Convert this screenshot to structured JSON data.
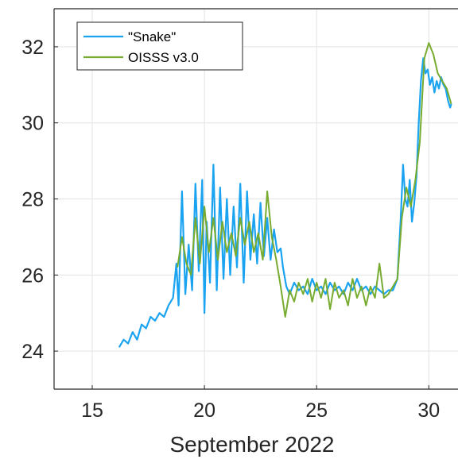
{
  "chart_data": {
    "type": "line",
    "title": "",
    "xlabel": "September 2022",
    "ylabel": "",
    "xlim": [
      13.3,
      31.3
    ],
    "ylim": [
      23.0,
      33.0
    ],
    "xticks": [
      15,
      20,
      25,
      30
    ],
    "xtick_labels": [
      "15",
      "20",
      "25",
      "30"
    ],
    "yticks": [
      24,
      26,
      28,
      30,
      32
    ],
    "ytick_labels": [
      "24",
      "26",
      "28",
      "30",
      "32"
    ],
    "grid": true,
    "legend_position": "top-left",
    "series": [
      {
        "name": "\"Snake\"",
        "color": "#1aa3f0",
        "x": [
          16.2,
          16.4,
          16.6,
          16.8,
          17.0,
          17.2,
          17.4,
          17.6,
          17.8,
          18.0,
          18.2,
          18.4,
          18.6,
          18.75,
          18.85,
          19.0,
          19.15,
          19.3,
          19.45,
          19.6,
          19.75,
          19.9,
          20.0,
          20.1,
          20.25,
          20.4,
          20.55,
          20.7,
          20.85,
          21.0,
          21.15,
          21.3,
          21.45,
          21.6,
          21.75,
          21.9,
          22.05,
          22.2,
          22.35,
          22.5,
          22.65,
          22.8,
          22.95,
          23.1,
          23.25,
          23.4,
          23.5,
          23.65,
          23.8,
          24.0,
          24.2,
          24.4,
          24.6,
          24.8,
          25.0,
          25.2,
          25.4,
          25.6,
          25.8,
          26.0,
          26.2,
          26.4,
          26.6,
          26.8,
          27.0,
          27.2,
          27.4,
          27.6,
          27.8,
          28.0,
          28.2,
          28.4,
          28.6,
          28.75,
          28.85,
          28.95,
          29.05,
          29.15,
          29.25,
          29.35,
          29.45,
          29.55,
          29.65,
          29.75,
          29.85,
          29.95,
          30.05,
          30.15,
          30.25,
          30.35,
          30.45,
          30.55,
          30.65,
          30.75,
          30.85,
          30.95,
          31.0
        ],
        "y": [
          24.1,
          24.3,
          24.2,
          24.5,
          24.3,
          24.7,
          24.6,
          24.9,
          24.8,
          25.0,
          24.9,
          25.2,
          25.4,
          26.3,
          25.2,
          28.2,
          25.5,
          26.8,
          25.6,
          28.4,
          26.1,
          28.5,
          25.0,
          27.4,
          25.8,
          28.9,
          25.6,
          28.3,
          25.9,
          28.0,
          26.0,
          27.8,
          26.2,
          28.4,
          25.8,
          28.2,
          26.4,
          27.6,
          26.3,
          27.9,
          26.5,
          27.5,
          26.4,
          27.2,
          26.6,
          26.7,
          26.2,
          25.7,
          25.5,
          25.8,
          25.6,
          25.7,
          25.5,
          25.9,
          25.6,
          25.7,
          25.5,
          25.8,
          25.6,
          25.7,
          25.5,
          25.8,
          25.6,
          25.9,
          25.6,
          25.7,
          25.5,
          25.7,
          25.6,
          25.5,
          25.6,
          25.6,
          25.9,
          27.5,
          28.9,
          28.0,
          27.8,
          28.5,
          27.4,
          27.9,
          28.6,
          30.0,
          31.1,
          31.7,
          31.3,
          31.4,
          31.0,
          31.2,
          30.8,
          31.1,
          30.9,
          31.2,
          31.0,
          30.9,
          30.6,
          30.4,
          30.5
        ]
      },
      {
        "name": "OISSS v3.0",
        "color": "#77ac30",
        "x": [
          18.8,
          19.0,
          19.2,
          19.4,
          19.6,
          19.8,
          20.0,
          20.2,
          20.4,
          20.6,
          20.8,
          21.0,
          21.2,
          21.4,
          21.6,
          21.8,
          22.0,
          22.2,
          22.4,
          22.6,
          22.8,
          23.0,
          23.2,
          23.4,
          23.6,
          23.8,
          24.0,
          24.2,
          24.4,
          24.6,
          24.8,
          25.0,
          25.2,
          25.4,
          25.6,
          25.8,
          26.0,
          26.2,
          26.4,
          26.6,
          26.8,
          27.0,
          27.2,
          27.4,
          27.6,
          27.8,
          28.0,
          28.2,
          28.4,
          28.6,
          28.8,
          29.0,
          29.2,
          29.4,
          29.6,
          29.8,
          30.0,
          30.2,
          30.4,
          30.6,
          30.8,
          31.0
        ],
        "y": [
          26.2,
          27.0,
          26.3,
          26.0,
          27.5,
          26.3,
          27.8,
          26.6,
          27.5,
          26.4,
          27.4,
          26.6,
          27.1,
          26.5,
          27.5,
          26.8,
          27.4,
          26.6,
          27.1,
          26.4,
          28.2,
          27.0,
          26.4,
          25.7,
          24.9,
          25.6,
          25.3,
          25.8,
          25.5,
          25.9,
          25.3,
          25.8,
          25.4,
          25.9,
          25.1,
          25.8,
          25.4,
          25.6,
          25.2,
          25.9,
          25.4,
          25.7,
          25.2,
          25.7,
          25.4,
          26.3,
          25.4,
          25.5,
          25.7,
          25.9,
          27.5,
          28.3,
          27.8,
          28.5,
          29.5,
          31.7,
          32.1,
          31.8,
          31.3,
          31.1,
          30.9,
          30.5
        ]
      }
    ]
  }
}
